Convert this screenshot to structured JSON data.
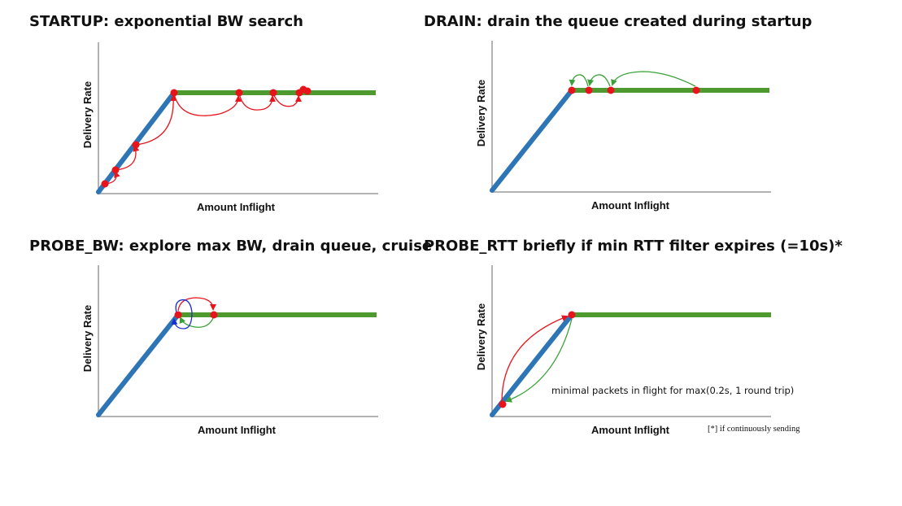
{
  "panels": [
    {
      "title": "STARTUP: exponential BW search",
      "xlabel": "Amount Inflight",
      "ylabel": "Delivery Rate"
    },
    {
      "title": "DRAIN: drain the queue created during startup",
      "xlabel": "Amount Inflight",
      "ylabel": "Delivery Rate"
    },
    {
      "title": "PROBE_BW: explore max BW, drain queue, cruise",
      "xlabel": "Amount Inflight",
      "ylabel": "Delivery Rate"
    },
    {
      "title": "PROBE_RTT briefly if min RTT filter expires (=10s)*",
      "xlabel": "Amount Inflight",
      "ylabel": "Delivery Rate",
      "note": "minimal packets in flight for max(0.2s, 1 round trip)",
      "footnote": "[*] if continuously sending"
    }
  ],
  "colors": {
    "rising_line": "#2e75b6",
    "plateau_line": "#4e9a2e",
    "point": "#e8141b",
    "arrow_red": "#e8141b",
    "arrow_green": "#3aa13a",
    "arrow_blue": "#1a2fd0",
    "axis": "#9a9a9a"
  }
}
